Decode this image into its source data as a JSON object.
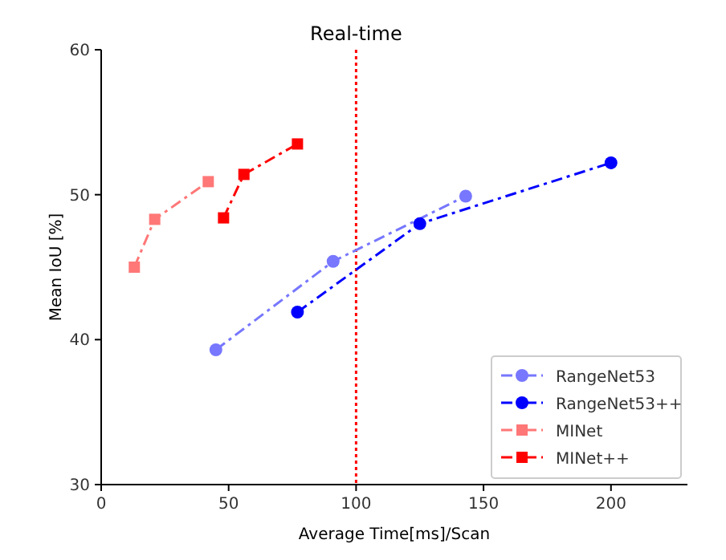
{
  "chart_data": {
    "type": "line",
    "xlabel": "Average Time[ms]/Scan",
    "ylabel": "Mean IoU [%]",
    "xlim": [
      0,
      230
    ],
    "xticks": [
      0,
      50,
      100,
      150,
      200
    ],
    "ylim": [
      30,
      60
    ],
    "yticks": [
      30,
      40,
      50,
      60
    ],
    "grid": false,
    "legend": "bottom right",
    "line_style": "dashed",
    "series": [
      {
        "name": "RangeNet53",
        "color": "#7777ff",
        "marker": "circle",
        "x": [
          45,
          91,
          143
        ],
        "values": [
          39.3,
          45.4,
          49.9
        ]
      },
      {
        "name": "RangeNet53++",
        "color": "#0000ff",
        "marker": "circle",
        "x": [
          77,
          125,
          200
        ],
        "values": [
          41.9,
          48.0,
          52.2
        ]
      },
      {
        "name": "MINet",
        "color": "#ff7777",
        "marker": "square",
        "x": [
          13,
          21,
          42
        ],
        "values": [
          45.0,
          48.3,
          50.9
        ]
      },
      {
        "name": "MINet++",
        "color": "#ff0000",
        "marker": "square",
        "x": [
          48,
          56,
          77
        ],
        "values": [
          48.4,
          51.4,
          53.5
        ]
      }
    ],
    "ref_lines": [
      {
        "axis": "x",
        "value": 100,
        "label": "Real-time",
        "color": "#ff0000",
        "line_style": "dotted"
      }
    ]
  }
}
